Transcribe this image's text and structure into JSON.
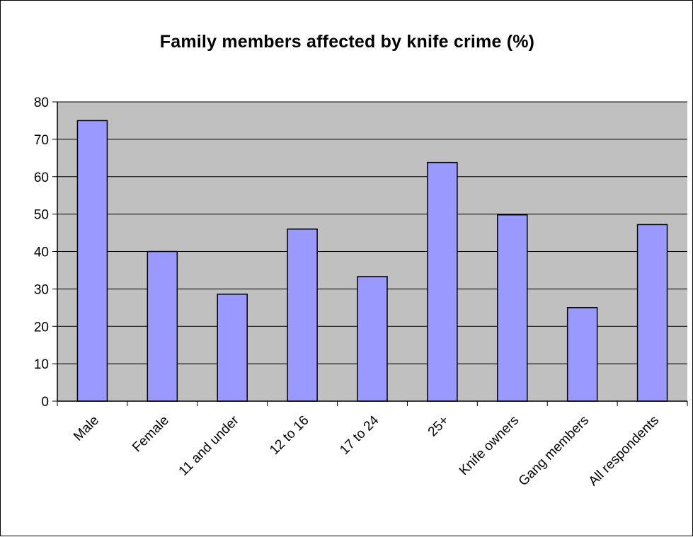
{
  "chart_data": {
    "type": "bar",
    "title": "Family members affected by knife crime (%)",
    "categories": [
      "Male",
      "Female",
      "11 and under",
      "12 to 16",
      "17 to 24",
      "25+",
      "Knife owners",
      "Gang members",
      "All respondents"
    ],
    "values": [
      75,
      40,
      28.6,
      46,
      33.3,
      63.8,
      49.8,
      25,
      47.2
    ],
    "yticks": [
      "0",
      "10",
      "20",
      "30",
      "40",
      "50",
      "60",
      "70",
      "80"
    ],
    "ylim": [
      0,
      80
    ],
    "grid": true,
    "legend": "none",
    "colors": {
      "bar_fill": "#9999ff",
      "bar_stroke": "#000000",
      "plot_background": "#c0c0c0",
      "gridline": "#000000"
    }
  }
}
